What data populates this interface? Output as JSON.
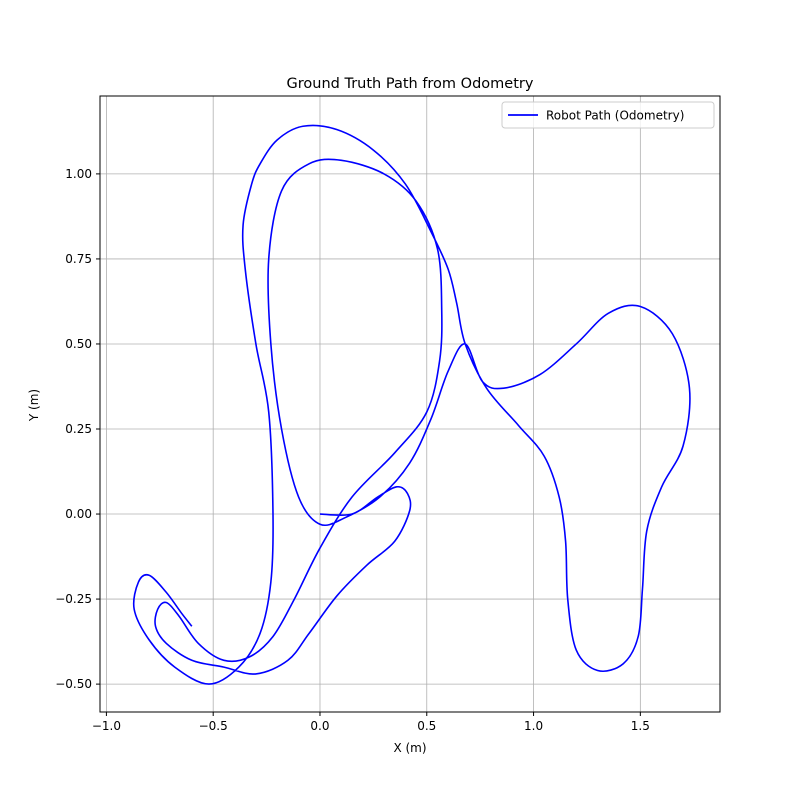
{
  "chart_data": {
    "type": "line",
    "title": "Ground Truth Path from Odometry",
    "x_label": "X (m)",
    "y_label": "Y (m)",
    "x": [
      0,
      0.15,
      0.27,
      0.36,
      0.41,
      0.42,
      0.35,
      0.22,
      0.08,
      -0.05,
      -0.15,
      -0.3,
      -0.45,
      -0.6,
      -0.72,
      -0.77,
      -0.76,
      -0.72,
      -0.66,
      -0.57,
      -0.45,
      -0.33,
      -0.22,
      -0.12,
      0.0,
      0.15,
      0.35,
      0.5,
      0.56,
      0.57,
      0.55,
      0.45,
      0.3,
      0.1,
      -0.05,
      -0.18,
      -0.24,
      -0.23,
      -0.18,
      -0.1,
      0.0,
      0.12,
      0.28,
      0.42,
      0.52,
      0.6,
      0.68,
      0.76,
      0.86,
      1.03,
      1.2,
      1.35,
      1.5,
      1.65,
      1.73,
      1.7,
      1.6,
      1.53,
      1.51,
      1.49,
      1.42,
      1.3,
      1.2,
      1.16,
      1.15,
      1.12,
      1.05,
      0.93,
      0.78,
      0.68,
      0.64,
      0.6,
      0.52,
      0.4,
      0.25,
      0.08,
      -0.08,
      -0.2,
      -0.28,
      -0.32,
      -0.36,
      -0.35,
      -0.3,
      -0.24,
      -0.22,
      -0.23,
      -0.28,
      -0.38,
      -0.52,
      -0.68,
      -0.8,
      -0.87,
      -0.85,
      -0.8,
      -0.72,
      -0.65,
      -0.6
    ],
    "series": [
      {
        "name": "Robot Path (Odometry)",
        "color": "#0000ff",
        "values": [
          0,
          0.0,
          0.05,
          0.08,
          0.06,
          0.01,
          -0.08,
          -0.15,
          -0.24,
          -0.35,
          -0.43,
          -0.47,
          -0.45,
          -0.43,
          -0.38,
          -0.33,
          -0.28,
          -0.26,
          -0.3,
          -0.38,
          -0.43,
          -0.42,
          -0.36,
          -0.25,
          -0.1,
          0.05,
          0.18,
          0.3,
          0.45,
          0.6,
          0.78,
          0.92,
          1.0,
          1.04,
          1.03,
          0.95,
          0.75,
          0.5,
          0.25,
          0.05,
          -0.03,
          -0.01,
          0.05,
          0.15,
          0.28,
          0.42,
          0.5,
          0.39,
          0.37,
          0.41,
          0.5,
          0.59,
          0.61,
          0.53,
          0.37,
          0.2,
          0.08,
          -0.05,
          -0.22,
          -0.36,
          -0.44,
          -0.46,
          -0.4,
          -0.25,
          -0.08,
          0.05,
          0.17,
          0.26,
          0.37,
          0.5,
          0.62,
          0.72,
          0.83,
          0.97,
          1.07,
          1.13,
          1.14,
          1.1,
          1.03,
          0.97,
          0.85,
          0.72,
          0.5,
          0.3,
          0.0,
          -0.2,
          -0.35,
          -0.45,
          -0.5,
          -0.45,
          -0.37,
          -0.28,
          -0.2,
          -0.18,
          -0.23,
          -0.29,
          -0.33
        ]
      }
    ],
    "xlim": [
      -1.03,
      1.873
    ],
    "ylim": [
      -0.582,
      1.229
    ],
    "xticks": [
      {
        "value": -1.0,
        "label": "−1.0"
      },
      {
        "value": -0.5,
        "label": "−0.5"
      },
      {
        "value": 0.0,
        "label": "0.0"
      },
      {
        "value": 0.5,
        "label": "0.5"
      },
      {
        "value": 1.0,
        "label": "1.0"
      },
      {
        "value": 1.5,
        "label": "1.5"
      }
    ],
    "yticks": [
      {
        "value": -0.5,
        "label": "−0.50"
      },
      {
        "value": -0.25,
        "label": "−0.25"
      },
      {
        "value": 0.0,
        "label": "0.00"
      },
      {
        "value": 0.25,
        "label": "0.25"
      },
      {
        "value": 0.5,
        "label": "0.50"
      },
      {
        "value": 0.75,
        "label": "0.75"
      },
      {
        "value": 1.0,
        "label": "1.00"
      }
    ],
    "grid": true,
    "legend": "upper right"
  }
}
